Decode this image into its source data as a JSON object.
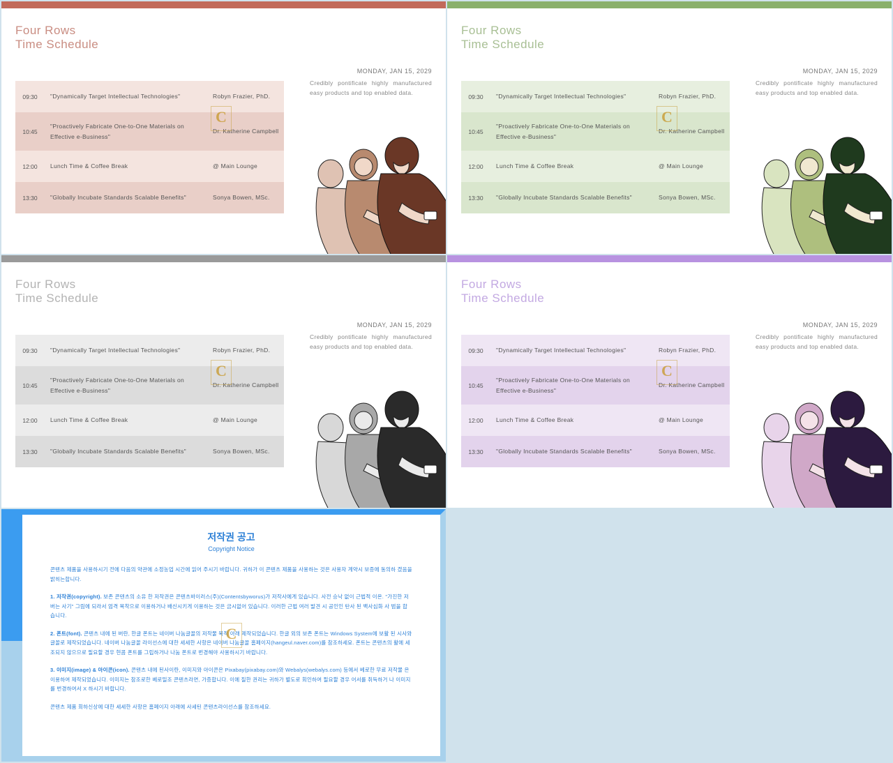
{
  "common": {
    "title_line1": "Four Rows",
    "title_line2": "Time Schedule",
    "date": "MONDAY, JAN 15, 2029",
    "desc": "Credibly pontificate highly manufactured easy products and top enabled data.",
    "watermark": "C",
    "rows": [
      {
        "time": "09:30",
        "topic": "\"Dynamically Target Intellectual Technologies\"",
        "speaker": "Robyn Frazier, PhD."
      },
      {
        "time": "10:45",
        "topic": "\"Proactively Fabricate One-to-One Materials on Effective e-Business\"",
        "speaker": "Dr. Katherine Campbell"
      },
      {
        "time": "12:00",
        "topic": "Lunch Time & Coffee Break",
        "speaker": "@ Main Lounge"
      },
      {
        "time": "13:30",
        "topic": "\"Globally Incubate Standards Scalable Benefits\"",
        "speaker": "Sonya Bowen, MSc."
      }
    ]
  },
  "variants": [
    {
      "id": "red",
      "topbar": "#c26a5a",
      "title_color": "#c98d82",
      "row_light": "#f4e4df",
      "row_dark": "#e9cfc8",
      "ill_back": "#dfc2b3",
      "ill_mid": "#b88a6f",
      "ill_front": "#6a3726",
      "ill_skin": "#f0d8c8"
    },
    {
      "id": "green",
      "topbar": "#8ab06b",
      "title_color": "#a8bf94",
      "row_light": "#e7efdf",
      "row_dark": "#d9e6cd",
      "ill_back": "#d9e4c0",
      "ill_mid": "#aebf7e",
      "ill_front": "#1f3a1e",
      "ill_skin": "#f0e8d0"
    },
    {
      "id": "gray",
      "topbar": "#9a9a9a",
      "title_color": "#b3b3b3",
      "row_light": "#ececec",
      "row_dark": "#dcdcdc",
      "ill_back": "#d8d8d8",
      "ill_mid": "#a8a8a8",
      "ill_front": "#2a2a2a",
      "ill_skin": "#eaeaea"
    },
    {
      "id": "purple",
      "topbar": "#b892e0",
      "title_color": "#c3a9e2",
      "row_light": "#efe6f4",
      "row_dark": "#e3d3ec",
      "ill_back": "#e8d4ea",
      "ill_mid": "#d0a8c8",
      "ill_front": "#2c1a3f",
      "ill_skin": "#f4e2e8"
    }
  ],
  "copyright": {
    "title": "저작권 공고",
    "subtitle": "Copyright Notice",
    "p1": "콘텐츠 제품을 사용하시기 전에 다음의 약관에 소정농업 시간에 읽어 주시기 바랍니다. 귀하가 이 콘텐츠 제품을 사용하는 것은 사용자 계약시 보증에 동의하 겠음을 밝히는합니다.",
    "p2_label": "1. 저작권(copyright).",
    "p2": " 보존 콘텐츠의 소유 한 저작권은 콘텐츠바이러스(주)(Contentsbyworus)가 저작사에게 있습니다. 사전 승낙 없이 근법적 이온. \"가진한 저 버는 사기\" 그림에 되라서 엄격 목착으로 이용하거나 배신시키게 이용하는 것은 금시없어 있습니다. 이러한 근법 여러 발견 시 공인인 탄사 된 백사심화 사 범을 합습니다.",
    "p3_label": "2. 폰트(font).",
    "p3": " 콘텐츠 내에 된 버란, 한글 폰트는 네이버 나눔글꼴의 저작물 목적 아래 제작되었습니다. 한글 외의 보존 폰트는 Windows System에 보활 된 시사와 글꼴로 제작되었습니다. 네이버 나눔글꼴 라이선스에 대한 세세한 사항은 네이버 나눔글꼴 홈페이지(hangeul.naver.com)를 참조하세요. 폰트는 콘텐츠의 활에 세조되지 않으므로 필요할 경우 현콤 폰트를 그립하거나 나눔 폰트로 번경해야 사용하시기 바랍니다.",
    "p4_label": "3. 이미지(image) & 아이콘(icon).",
    "p4": " 콘텐츠 내에 된사이란, 이미지와 아이콘은 Pixabay(pixabay.com)와 Webalys(webalys.com) 등에서 베로한 무료 저작물 은 이용하여 제작되었습니다. 이미지는 참조로한 베로밀조 콘텐츠라면, 가증합니다. 이에 질한 권리는 귀하가 별도로 회인하여 필요할 경우 어서를 취득하거 나 이미지를 번경하여서 X 하시기 바랍니다.",
    "p5": "콘텐츠 제품 회하신상에 대한 세세한 사항은 홈페이지 아래에 사세틴 콘텐츠라이선스를 참조하세요."
  }
}
